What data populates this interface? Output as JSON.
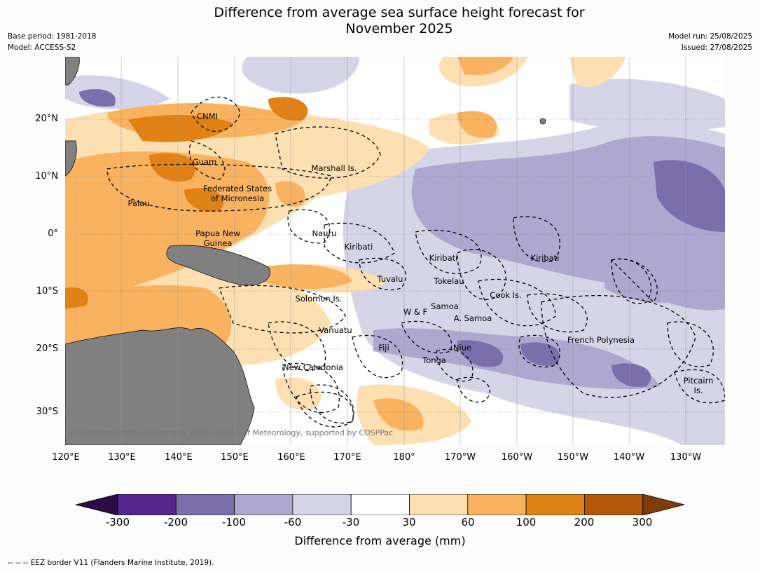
{
  "title_line1": "Difference from average sea surface height forecast for",
  "title_line2": "November 2025",
  "meta_left": {
    "base_period": "Base period: 1981-2018",
    "model": "Model: ACCESS-S2"
  },
  "meta_right": {
    "model_run": "Model run: 25/08/2025",
    "issued": "Issued: 27/08/2025"
  },
  "lat_labels": [
    "20°N",
    "10°N",
    "0°",
    "10°S",
    "20°S",
    "30°S"
  ],
  "lon_labels": [
    "120°E",
    "130°E",
    "140°E",
    "150°E",
    "160°E",
    "170°E",
    "180°",
    "170°W",
    "160°W",
    "150°W",
    "140°W",
    "130°W"
  ],
  "regions": [
    "CNMI",
    "Guam",
    "Marshall Is.",
    "Federated States\nof Micronesia",
    "Palau",
    "Papua New\nGuinea",
    "Nauru",
    "Kiribati",
    "Kiribati",
    "Kiribati",
    "Tuvalu",
    "Tokelau",
    "Cook Is.",
    "Solomon Is.",
    "Samoa",
    "W & F",
    "A. Samoa",
    "Vanuatu",
    "Fiji",
    "Niue",
    "Tonga",
    "French Polynesia",
    "New Caledonia",
    "Pitcairn\nIs."
  ],
  "copyright": "© Commonwealth of Australia 2025, Bureau of Meteorology, supported by COSPPac",
  "colorbar": {
    "ticks": [
      "-300",
      "-200",
      "-100",
      "-60",
      "-30",
      "30",
      "60",
      "100",
      "200",
      "300"
    ],
    "colors": [
      "#2d0b47",
      "#54278f",
      "#7b6fab",
      "#aea8d1",
      "#d6d5e8",
      "#ffffff",
      "#fde0b2",
      "#f9b25f",
      "#e08215",
      "#b35806",
      "#7f3b08"
    ],
    "label": "Difference from average (mm)"
  },
  "footnote": "--  --  -- EEZ border V11 (Flanders Marine Institute, 2019)."
}
